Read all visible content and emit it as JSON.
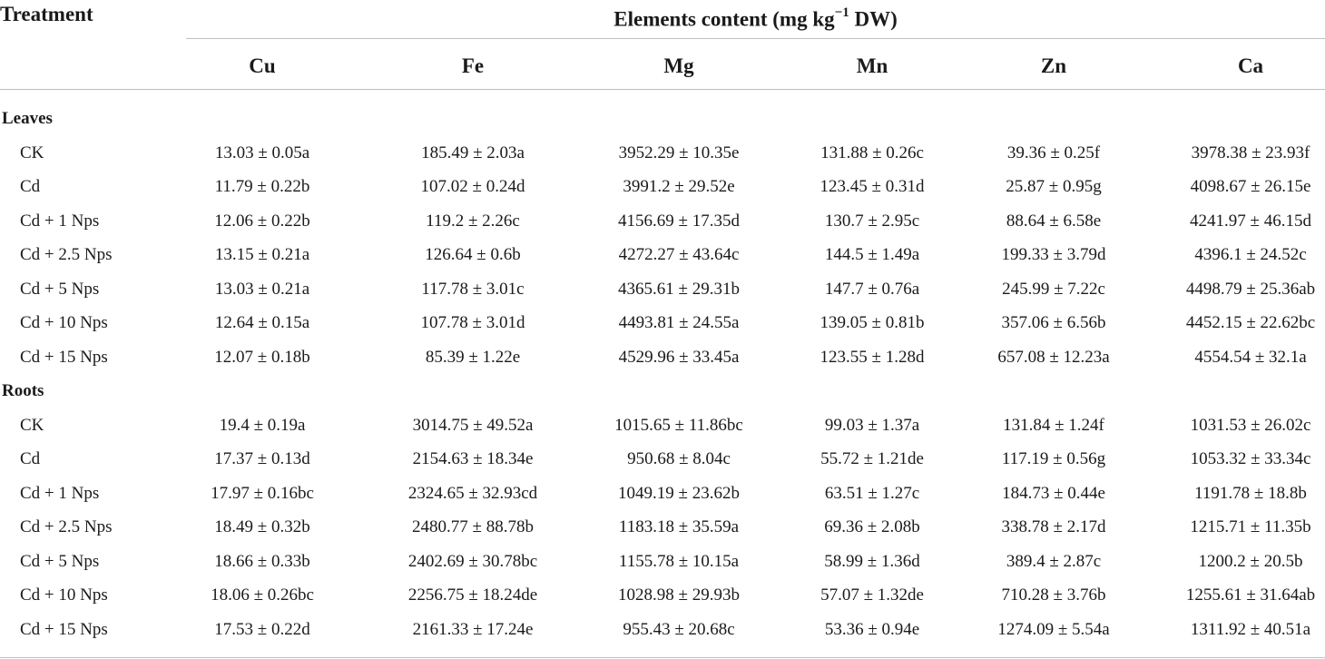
{
  "header": {
    "treatment_label": "Treatment",
    "elements_label_pre": "Elements content (mg kg",
    "elements_label_sup": "−1",
    "elements_label_post": " DW)"
  },
  "columns": [
    "Cu",
    "Fe",
    "Mg",
    "Mn",
    "Zn",
    "Ca"
  ],
  "sections": [
    {
      "label": "Leaves",
      "rows": [
        {
          "treatment": "CK",
          "values": [
            "13.03 ± 0.05a",
            "185.49 ± 2.03a",
            "3952.29 ± 10.35e",
            "131.88 ± 0.26c",
            "39.36 ± 0.25f",
            "3978.38 ± 23.93f"
          ]
        },
        {
          "treatment": "Cd",
          "values": [
            "11.79 ± 0.22b",
            "107.02 ± 0.24d",
            "3991.2 ± 29.52e",
            "123.45 ± 0.31d",
            "25.87 ± 0.95g",
            "4098.67 ± 26.15e"
          ]
        },
        {
          "treatment": "Cd + 1 Nps",
          "values": [
            "12.06 ± 0.22b",
            "119.2 ± 2.26c",
            "4156.69 ± 17.35d",
            "130.7 ± 2.95c",
            "88.64 ± 6.58e",
            "4241.97 ± 46.15d"
          ]
        },
        {
          "treatment": "Cd + 2.5 Nps",
          "values": [
            "13.15 ± 0.21a",
            "126.64 ± 0.6b",
            "4272.27 ± 43.64c",
            "144.5 ± 1.49a",
            "199.33 ± 3.79d",
            "4396.1 ± 24.52c"
          ]
        },
        {
          "treatment": "Cd + 5 Nps",
          "values": [
            "13.03 ± 0.21a",
            "117.78 ± 3.01c",
            "4365.61 ± 29.31b",
            "147.7 ± 0.76a",
            "245.99 ± 7.22c",
            "4498.79 ± 25.36ab"
          ]
        },
        {
          "treatment": "Cd + 10 Nps",
          "values": [
            "12.64 ± 0.15a",
            "107.78 ± 3.01d",
            "4493.81 ± 24.55a",
            "139.05 ± 0.81b",
            "357.06 ± 6.56b",
            "4452.15 ± 22.62bc"
          ]
        },
        {
          "treatment": "Cd + 15 Nps",
          "values": [
            "12.07 ± 0.18b",
            "85.39 ± 1.22e",
            "4529.96 ± 33.45a",
            "123.55 ± 1.28d",
            "657.08 ± 12.23a",
            "4554.54 ± 32.1a"
          ]
        }
      ]
    },
    {
      "label": "Roots",
      "rows": [
        {
          "treatment": "CK",
          "values": [
            "19.4 ± 0.19a",
            "3014.75 ± 49.52a",
            "1015.65 ± 11.86bc",
            "99.03 ± 1.37a",
            "131.84 ± 1.24f",
            "1031.53 ± 26.02c"
          ]
        },
        {
          "treatment": "Cd",
          "values": [
            "17.37 ± 0.13d",
            "2154.63 ± 18.34e",
            "950.68 ± 8.04c",
            "55.72 ± 1.21de",
            "117.19 ± 0.56g",
            "1053.32 ± 33.34c"
          ]
        },
        {
          "treatment": "Cd + 1 Nps",
          "values": [
            "17.97 ± 0.16bc",
            "2324.65 ± 32.93cd",
            "1049.19 ± 23.62b",
            "63.51 ± 1.27c",
            "184.73 ± 0.44e",
            "1191.78 ± 18.8b"
          ]
        },
        {
          "treatment": "Cd + 2.5 Nps",
          "values": [
            "18.49 ± 0.32b",
            "2480.77 ± 88.78b",
            "1183.18 ± 35.59a",
            "69.36 ± 2.08b",
            "338.78 ± 2.17d",
            "1215.71 ± 11.35b"
          ]
        },
        {
          "treatment": "Cd + 5 Nps",
          "values": [
            "18.66 ± 0.33b",
            "2402.69 ± 30.78bc",
            "1155.78 ± 10.15a",
            "58.99 ± 1.36d",
            "389.4 ± 2.87c",
            "1200.2 ± 20.5b"
          ]
        },
        {
          "treatment": "Cd + 10 Nps",
          "values": [
            "18.06 ± 0.26bc",
            "2256.75 ± 18.24de",
            "1028.98 ± 29.93b",
            "57.07 ± 1.32de",
            "710.28 ± 3.76b",
            "1255.61 ± 31.64ab"
          ]
        },
        {
          "treatment": "Cd + 15 Nps",
          "values": [
            "17.53 ± 0.22d",
            "2161.33 ± 17.24e",
            "955.43 ± 20.68c",
            "53.36 ± 0.94e",
            "1274.09 ± 5.54a",
            "1311.92 ± 40.51a"
          ]
        }
      ]
    }
  ]
}
